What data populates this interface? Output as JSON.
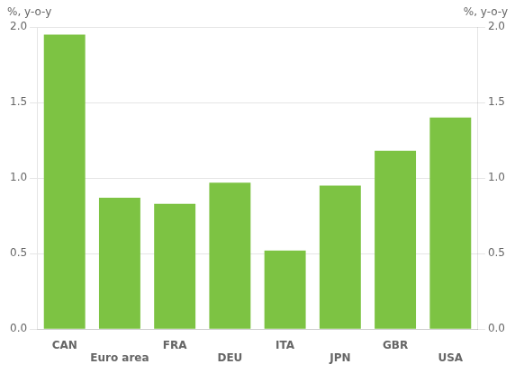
{
  "chart_data": {
    "type": "bar",
    "categories": [
      "CAN",
      "Euro area",
      "FRA",
      "DEU",
      "ITA",
      "JPN",
      "GBR",
      "USA"
    ],
    "values": [
      1.95,
      0.87,
      0.83,
      0.97,
      0.52,
      0.95,
      1.18,
      1.4
    ],
    "color": "#7DC343",
    "ylim": [
      0.0,
      2.0
    ],
    "yticks": [
      {
        "value": 0,
        "label": "0.0"
      },
      0.5,
      {
        "value": 1,
        "label": "1.0"
      },
      1.5,
      {
        "value": 2,
        "label": "2.0"
      }
    ],
    "y2lim": [
      0.0,
      2.0
    ],
    "y2ticks": [
      {
        "value": 0,
        "label": "0.0"
      },
      0.5,
      {
        "value": 1,
        "label": "1.0"
      },
      1.5,
      {
        "value": 2,
        "label": "2.0"
      }
    ],
    "ylabel": "%, y-o-y",
    "y2label": "%, y-o-y",
    "grid": true
  }
}
